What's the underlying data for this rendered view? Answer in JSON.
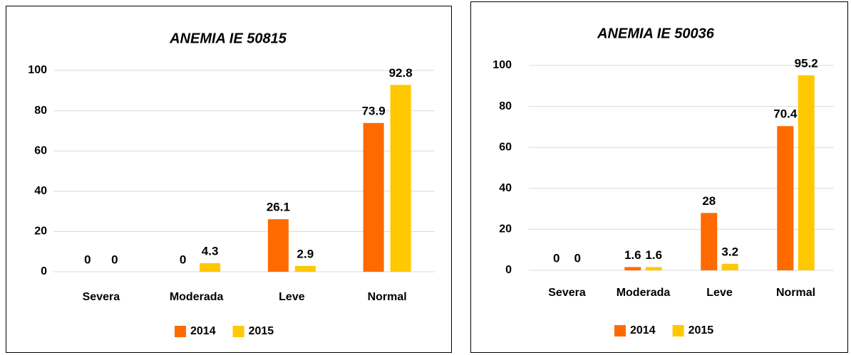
{
  "chart_data": [
    {
      "type": "bar",
      "title": "ANEMIA  IE 50815",
      "categories": [
        "Severa",
        "Moderada",
        "Leve",
        "Normal"
      ],
      "series": [
        {
          "name": "2014",
          "color": "#ff6a00",
          "values": [
            0,
            0,
            26.1,
            73.9
          ]
        },
        {
          "name": "2015",
          "color": "#ffc800",
          "values": [
            0,
            4.3,
            2.9,
            92.8
          ]
        }
      ],
      "ylim": [
        0,
        100
      ],
      "yticks": [
        0,
        20,
        40,
        60,
        80,
        100
      ],
      "grid": true,
      "legend": "bottom"
    },
    {
      "type": "bar",
      "title": "ANEMIA IE 50036",
      "categories": [
        "Severa",
        "Moderada",
        "Leve",
        "Normal"
      ],
      "series": [
        {
          "name": "2014",
          "color": "#ff6a00",
          "values": [
            0,
            1.6,
            28,
            70.4
          ]
        },
        {
          "name": "2015",
          "color": "#ffc800",
          "values": [
            0,
            1.6,
            3.2,
            95.2
          ]
        }
      ],
      "ylim": [
        0,
        100
      ],
      "yticks": [
        0,
        20,
        40,
        60,
        80,
        100
      ],
      "grid": true,
      "legend": "bottom"
    }
  ]
}
